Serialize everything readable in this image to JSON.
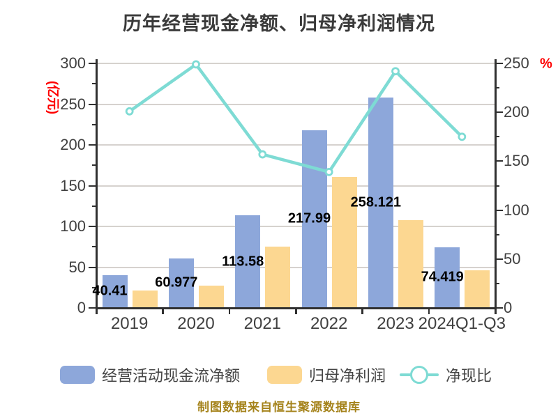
{
  "chart_data": {
    "type": "bar+line combo",
    "title": "历年经营现金净额、归母净利润情况",
    "categories": [
      "2019",
      "2020",
      "2021",
      "2022",
      "2023",
      "2024Q1-Q3"
    ],
    "series": [
      {
        "name": "经营活动现金流净额",
        "type": "bar",
        "axis": "left",
        "color": "#8da7da",
        "values": [
          40.41,
          60.977,
          113.58,
          217.99,
          258.121,
          74.419
        ],
        "labels": [
          "40.41",
          "60.977",
          "113.58",
          "217.99",
          "258.121",
          "74.419"
        ]
      },
      {
        "name": "归母净利润",
        "type": "bar",
        "axis": "left",
        "color": "#fcd791",
        "values": [
          21,
          27,
          75,
          161,
          108,
          46
        ]
      },
      {
        "name": "净现比",
        "type": "line",
        "axis": "right",
        "color": "#7edbd4",
        "marker": "circle-white-fill",
        "values": [
          201,
          249,
          157,
          139,
          242,
          175
        ]
      }
    ],
    "left_axis": {
      "name": "(亿元)",
      "min": 0,
      "max": 300,
      "step": 50,
      "minor_step": 25,
      "label_color": "#3f3f3f",
      "name_color": "#fe0000"
    },
    "right_axis": {
      "name": "%",
      "min": 0,
      "max": 250,
      "step": 50,
      "minor_step": 25,
      "label_color": "#3f3f3f",
      "name_color": "#fe0000"
    },
    "grid": "horizontal-major-only",
    "legend_position": "bottom"
  },
  "legend": {
    "items": [
      {
        "label": "经营活动现金流净额",
        "swatch": "blue-rounded-rect",
        "color": "#8da7da"
      },
      {
        "label": "归母净利润",
        "swatch": "yellow-rounded-rect",
        "color": "#fcd791"
      },
      {
        "label": "净现比",
        "swatch": "teal-line-with-circle-marker",
        "color": "#7edbd4"
      }
    ]
  },
  "source_note": "制图数据来自恒生聚源数据库",
  "colors": {
    "background": "#ffffff",
    "title_text": "#3a3a3a",
    "axis_line": "#303030",
    "gridline": "#d6d2ce",
    "bar_blue": "#8da7da",
    "bar_yellow": "#fcd791",
    "line_teal": "#7edbd4",
    "red_accent": "#fe0000",
    "value_label": "#000000",
    "source_note_text": "#a5831b"
  }
}
